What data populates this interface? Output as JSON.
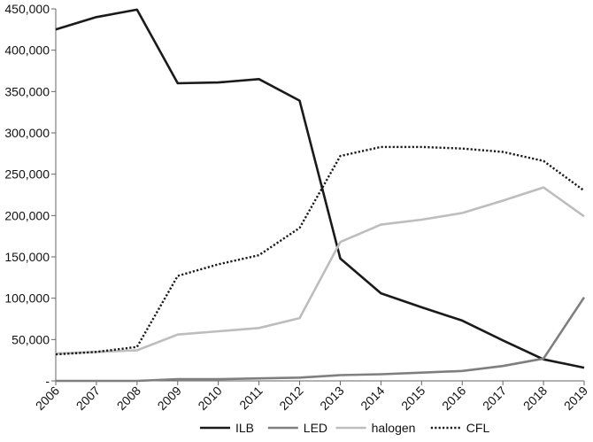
{
  "chart_data": {
    "type": "line",
    "title": "",
    "xlabel": "",
    "ylabel": "",
    "x": [
      "2006",
      "2007",
      "2008",
      "2009",
      "2010",
      "2011",
      "2012",
      "2013",
      "2014",
      "2015",
      "2016",
      "2017",
      "2018",
      "2019"
    ],
    "ylim": [
      0,
      450000
    ],
    "yticks": [
      0,
      50000,
      100000,
      150000,
      200000,
      250000,
      300000,
      350000,
      400000,
      450000
    ],
    "ytick_labels": [
      "-",
      "50,000",
      "100,000",
      "150,000",
      "200,000",
      "250,000",
      "300,000",
      "350,000",
      "400,000",
      "450,000"
    ],
    "grid": false,
    "legend_position": "bottom",
    "series": [
      {
        "name": "ILB",
        "color": "#1a1a1a",
        "dash": "solid",
        "values": [
          425000,
          440000,
          449000,
          360000,
          361000,
          365000,
          339000,
          148000,
          106000,
          89000,
          73000,
          49000,
          26000,
          16000
        ]
      },
      {
        "name": "LED",
        "color": "#7f7f7f",
        "dash": "solid",
        "values": [
          0,
          0,
          0,
          2000,
          2000,
          3000,
          4000,
          7000,
          8000,
          10000,
          12000,
          18000,
          27000,
          101000
        ]
      },
      {
        "name": "halogen",
        "color": "#bdbdbd",
        "dash": "solid",
        "values": [
          33000,
          35000,
          37000,
          56000,
          60000,
          64000,
          76000,
          168000,
          189000,
          195000,
          203000,
          218000,
          234000,
          199000
        ]
      },
      {
        "name": "CFL",
        "color": "#1a1a1a",
        "dash": "dotted",
        "values": [
          32000,
          35000,
          41000,
          127000,
          141000,
          152000,
          185000,
          272000,
          283000,
          283000,
          281000,
          277000,
          266000,
          230000
        ]
      }
    ]
  }
}
